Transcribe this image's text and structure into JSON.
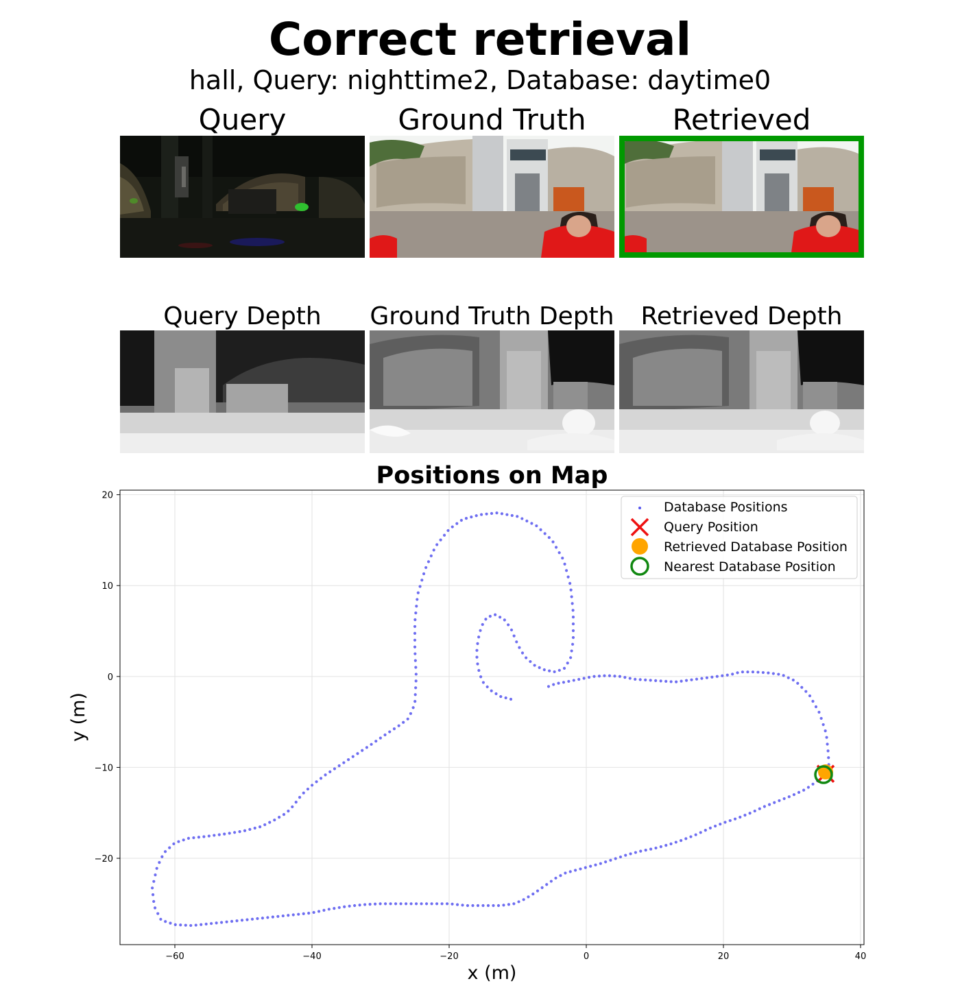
{
  "figure": {
    "title": "Correct retrieval",
    "subtitle": "hall, Query: nighttime2, Database: daytime0"
  },
  "panels": {
    "query": "Query",
    "ground_truth": "Ground Truth",
    "retrieved": "Retrieved",
    "query_depth": "Query Depth",
    "ground_truth_depth": "Ground Truth Depth",
    "retrieved_depth": "Retrieved Depth",
    "retrieved_border_color": "#009900"
  },
  "chart_data": {
    "type": "scatter",
    "title": "Positions on Map",
    "xlabel": "x (m)",
    "ylabel": "y (m)",
    "xlim": [
      -68,
      40.5
    ],
    "ylim": [
      -29.5,
      20.5
    ],
    "xticks": [
      -60,
      -40,
      -20,
      0,
      20,
      40
    ],
    "yticks": [
      -20,
      -10,
      0,
      10,
      20
    ],
    "xtick_labels": [
      "−60",
      "−40",
      "−20",
      "0",
      "20",
      "40"
    ],
    "ytick_labels": [
      "−20",
      "−10",
      "0",
      "10",
      "20"
    ],
    "grid": true,
    "legend_position": "top-right",
    "legend": [
      "Database Positions",
      "Query Position",
      "Retrieved Database Position",
      "Nearest Database Position"
    ],
    "colors": {
      "database": "#5555ee",
      "query": "#ee1111",
      "retrieved": "#ffa500",
      "nearest": "#118811"
    },
    "database_path_a": [
      [
        -11,
        -2.5
      ],
      [
        -12.5,
        -2.2
      ],
      [
        -14,
        -1.5
      ],
      [
        -15.2,
        -0.5
      ],
      [
        -15.8,
        1
      ],
      [
        -16,
        2.5
      ],
      [
        -15.8,
        4
      ],
      [
        -15.3,
        5.5
      ],
      [
        -14.5,
        6.5
      ],
      [
        -13.3,
        6.8
      ],
      [
        -12,
        6.3
      ],
      [
        -11,
        5.3
      ],
      [
        -10,
        3.5
      ],
      [
        -9,
        2.2
      ],
      [
        -7.5,
        1.2
      ],
      [
        -6,
        0.7
      ],
      [
        -4.5,
        0.5
      ],
      [
        -3.2,
        0.9
      ],
      [
        -2.3,
        2
      ],
      [
        -1.9,
        4
      ],
      [
        -1.9,
        7
      ],
      [
        -2.3,
        10
      ],
      [
        -3.3,
        12.8
      ],
      [
        -5,
        15
      ],
      [
        -7.3,
        16.6
      ],
      [
        -10,
        17.6
      ],
      [
        -13,
        18
      ],
      [
        -15.5,
        17.8
      ],
      [
        -18,
        17.3
      ],
      [
        -20,
        16.2
      ],
      [
        -22,
        14.3
      ],
      [
        -23.5,
        11.8
      ],
      [
        -24.6,
        9
      ],
      [
        -25,
        6
      ],
      [
        -25,
        3
      ],
      [
        -24.8,
        0
      ],
      [
        -25,
        -3
      ],
      [
        -25.9,
        -4.6
      ],
      [
        -27.3,
        -5.4
      ],
      [
        -29.5,
        -6.5
      ],
      [
        -31.6,
        -7.6
      ],
      [
        -33.8,
        -8.7
      ],
      [
        -36,
        -9.8
      ],
      [
        -38,
        -10.8
      ],
      [
        -39.9,
        -11.9
      ],
      [
        -41.5,
        -13
      ],
      [
        -42.7,
        -14.2
      ],
      [
        -43.7,
        -15
      ],
      [
        -45.5,
        -15.8
      ],
      [
        -47.4,
        -16.5
      ],
      [
        -50,
        -17
      ],
      [
        -52.5,
        -17.3
      ],
      [
        -55.5,
        -17.6
      ],
      [
        -58,
        -17.8
      ],
      [
        -60,
        -18.3
      ],
      [
        -61.6,
        -19.4
      ],
      [
        -62.6,
        -21
      ],
      [
        -63.3,
        -23.3
      ],
      [
        -63,
        -25.3
      ],
      [
        -62,
        -26.8
      ],
      [
        -60,
        -27.3
      ],
      [
        -57.5,
        -27.4
      ],
      [
        -55,
        -27.2
      ],
      [
        -52.5,
        -27
      ],
      [
        -50,
        -26.8
      ],
      [
        -47.5,
        -26.6
      ],
      [
        -45,
        -26.4
      ],
      [
        -42.5,
        -26.2
      ],
      [
        -40,
        -26
      ],
      [
        -37.5,
        -25.6
      ],
      [
        -35,
        -25.3
      ],
      [
        -32.5,
        -25.1
      ],
      [
        -30,
        -25
      ],
      [
        -27.5,
        -25
      ],
      [
        -25,
        -25
      ],
      [
        -22.5,
        -25
      ],
      [
        -20,
        -25
      ],
      [
        -17.5,
        -25.2
      ],
      [
        -15,
        -25.2
      ],
      [
        -12.5,
        -25.2
      ],
      [
        -10.5,
        -25
      ],
      [
        -9,
        -24.5
      ],
      [
        -7.5,
        -23.8
      ],
      [
        -6,
        -23
      ],
      [
        -4.5,
        -22.2
      ],
      [
        -3,
        -21.6
      ],
      [
        -1.5,
        -21.3
      ],
      [
        0,
        -21
      ],
      [
        2,
        -20.6
      ],
      [
        4,
        -20.1
      ],
      [
        6,
        -19.6
      ],
      [
        8,
        -19.2
      ],
      [
        10,
        -18.9
      ],
      [
        12,
        -18.5
      ],
      [
        14,
        -18
      ],
      [
        16,
        -17.4
      ],
      [
        18,
        -16.7
      ],
      [
        20,
        -16.1
      ],
      [
        22,
        -15.6
      ],
      [
        24,
        -15
      ],
      [
        26,
        -14.3
      ],
      [
        28,
        -13.7
      ],
      [
        30,
        -13.1
      ],
      [
        32,
        -12.4
      ],
      [
        33.5,
        -11.6
      ],
      [
        34.5,
        -11
      ],
      [
        35,
        -10.6
      ]
    ],
    "database_path_b": [
      [
        -5.5,
        -1.1
      ],
      [
        -4.5,
        -0.8
      ],
      [
        -3,
        -0.6
      ],
      [
        -1,
        -0.3
      ],
      [
        1,
        0
      ],
      [
        3,
        0.1
      ],
      [
        5,
        0
      ],
      [
        7,
        -0.3
      ],
      [
        9,
        -0.4
      ],
      [
        11,
        -0.5
      ],
      [
        13,
        -0.6
      ],
      [
        15,
        -0.4
      ],
      [
        17,
        -0.2
      ],
      [
        19,
        0
      ],
      [
        21,
        0.2
      ],
      [
        22.5,
        0.5
      ],
      [
        24.5,
        0.5
      ],
      [
        26.5,
        0.4
      ],
      [
        28.5,
        0.2
      ],
      [
        30.5,
        -0.5
      ],
      [
        32.5,
        -2
      ],
      [
        34,
        -4
      ],
      [
        35,
        -6.3
      ],
      [
        35.3,
        -8.5
      ],
      [
        35.4,
        -10.3
      ]
    ],
    "query_position": [
      34.9,
      -10.7
    ],
    "retrieved_position": [
      34.9,
      -10.5
    ],
    "nearest_position": [
      34.6,
      -10.8
    ]
  }
}
